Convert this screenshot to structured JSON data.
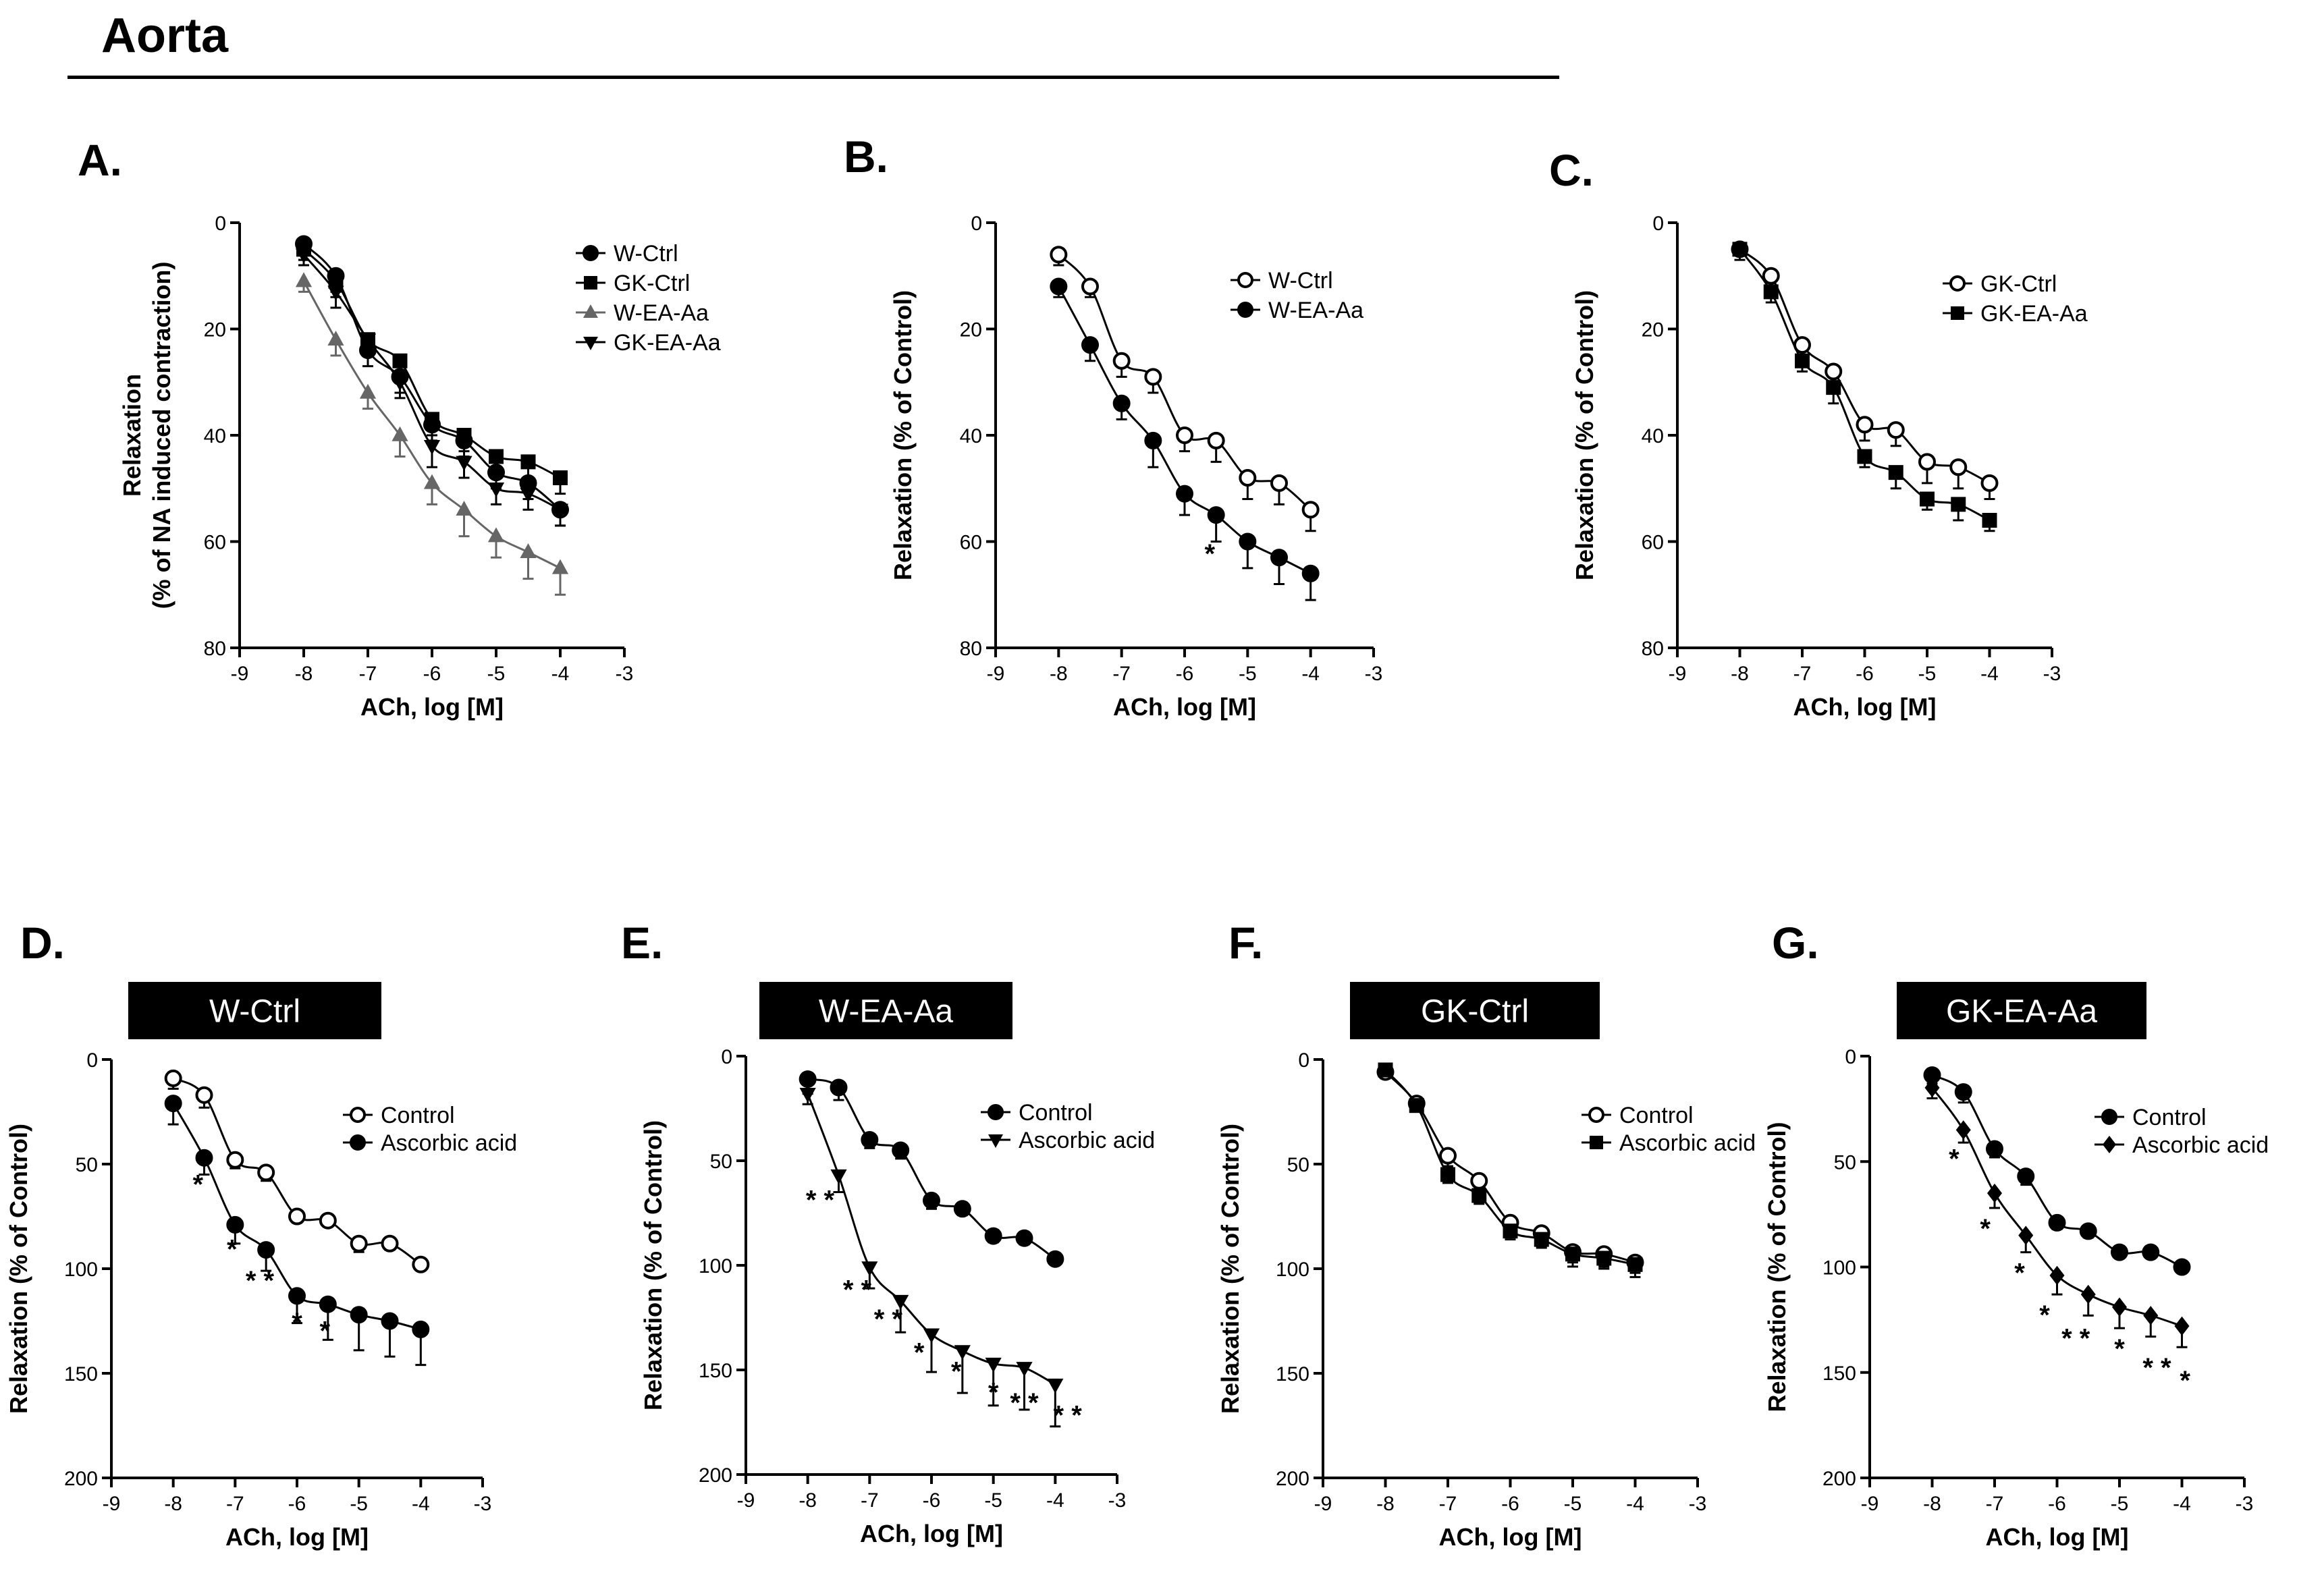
{
  "page": {
    "title": "Aorta"
  },
  "chart_data": [
    {
      "id": "A",
      "panel_label": "A.",
      "type": "line",
      "ylabel_lines": [
        "Relaxation",
        "(% of NA induced contraction)"
      ],
      "xlabel": "ACh, log [M]",
      "xlim": [
        -9,
        -3
      ],
      "ylim": [
        0,
        80
      ],
      "y_inverted": true,
      "xticks": [
        -9,
        -8,
        -7,
        -6,
        -5,
        -4,
        -3
      ],
      "yticks": [
        0,
        20,
        40,
        60,
        80
      ],
      "x": [
        -8,
        -7.5,
        -7,
        -6.5,
        -6,
        -5.5,
        -5,
        -4.5,
        -4
      ],
      "series": [
        {
          "name": "W-Ctrl",
          "marker": "circle",
          "values": [
            4,
            10,
            24,
            29,
            38,
            41,
            47,
            49,
            54
          ],
          "err": [
            3,
            3,
            3,
            3,
            3,
            3,
            3,
            3,
            3
          ]
        },
        {
          "name": "GK-Ctrl",
          "marker": "square",
          "values": [
            5,
            11,
            22,
            26,
            37,
            40,
            44,
            45,
            48
          ],
          "err": [
            2,
            3,
            3,
            3,
            3,
            3,
            3,
            3,
            3
          ]
        },
        {
          "name": "W-EA-Aa",
          "marker": "triangle-up",
          "color": "#666666",
          "values": [
            11,
            22,
            32,
            40,
            49,
            54,
            59,
            62,
            65
          ],
          "err": [
            2,
            3,
            3,
            4,
            4,
            5,
            4,
            5,
            5
          ]
        },
        {
          "name": "GK-EA-Aa",
          "marker": "triangle-down",
          "values": [
            6,
            13,
            22,
            30,
            42,
            45,
            50,
            51,
            54
          ],
          "err": [
            2,
            3,
            3,
            3,
            4,
            3,
            3,
            3,
            3
          ]
        }
      ],
      "annotations": []
    },
    {
      "id": "B",
      "panel_label": "B.",
      "type": "line",
      "ylabel_lines": [
        "Relaxation (% of Control)"
      ],
      "xlabel": "ACh, log [M]",
      "xlim": [
        -9,
        -3
      ],
      "ylim": [
        0,
        80
      ],
      "y_inverted": true,
      "xticks": [
        -9,
        -8,
        -7,
        -6,
        -5,
        -4,
        -3
      ],
      "yticks": [
        0,
        20,
        40,
        60,
        80
      ],
      "x": [
        -8,
        -7.5,
        -7,
        -6.5,
        -6,
        -5.5,
        -5,
        -4.5,
        -4
      ],
      "series": [
        {
          "name": "W-Ctrl",
          "marker": "circle-open",
          "values": [
            6,
            12,
            26,
            29,
            40,
            41,
            48,
            49,
            54
          ],
          "err": [
            2,
            2,
            3,
            3,
            3,
            4,
            4,
            4,
            4
          ]
        },
        {
          "name": "W-EA-Aa",
          "marker": "circle",
          "values": [
            12,
            23,
            34,
            41,
            51,
            55,
            60,
            63,
            66
          ],
          "err": [
            2,
            3,
            3,
            5,
            4,
            5,
            5,
            5,
            5
          ]
        }
      ],
      "annotations": [
        {
          "text": "*",
          "x": -5.6,
          "y": 64
        }
      ]
    },
    {
      "id": "C",
      "panel_label": "C.",
      "type": "line",
      "ylabel_lines": [
        "Relaxation (% of Control)"
      ],
      "xlabel": "ACh, log [M]",
      "xlim": [
        -9,
        -3
      ],
      "ylim": [
        0,
        80
      ],
      "y_inverted": true,
      "xticks": [
        -9,
        -8,
        -7,
        -6,
        -5,
        -4,
        -3
      ],
      "yticks": [
        0,
        20,
        40,
        60,
        80
      ],
      "x": [
        -8,
        -7.5,
        -7,
        -6.5,
        -6,
        -5.5,
        -5,
        -4.5,
        -4
      ],
      "series": [
        {
          "name": "GK-Ctrl",
          "marker": "circle-open",
          "values": [
            5,
            10,
            23,
            28,
            38,
            39,
            45,
            46,
            49
          ],
          "err": [
            2,
            2,
            3,
            4,
            3,
            3,
            4,
            4,
            3
          ]
        },
        {
          "name": "GK-EA-Aa",
          "marker": "square",
          "values": [
            5,
            13,
            26,
            31,
            44,
            47,
            52,
            53,
            56
          ],
          "err": [
            1,
            2,
            2,
            3,
            2,
            3,
            2,
            3,
            2
          ]
        }
      ],
      "annotations": []
    },
    {
      "id": "D",
      "panel_label": "D.",
      "box_title": "W-Ctrl",
      "type": "line",
      "ylabel_lines": [
        "Relaxation (% of Control)"
      ],
      "xlabel": "ACh, log [M]",
      "xlim": [
        -9,
        -3
      ],
      "ylim": [
        0,
        200
      ],
      "y_inverted": true,
      "xticks": [
        -9,
        -8,
        -7,
        -6,
        -5,
        -4,
        -3
      ],
      "yticks": [
        0,
        50,
        100,
        150,
        200
      ],
      "x": [
        -8,
        -7.5,
        -7,
        -6.5,
        -6,
        -5.5,
        -5,
        -4.5,
        -4
      ],
      "series": [
        {
          "name": "Control",
          "marker": "circle-open",
          "values": [
            9,
            17,
            48,
            54,
            75,
            77,
            88,
            88,
            98
          ],
          "err": [
            5,
            6,
            4,
            4,
            3,
            2,
            4,
            3,
            2
          ]
        },
        {
          "name": "Ascorbic acid",
          "marker": "circle",
          "values": [
            21,
            47,
            79,
            91,
            113,
            117,
            122,
            125,
            129
          ],
          "err": [
            10,
            8,
            9,
            10,
            13,
            17,
            17,
            17,
            17
          ]
        }
      ],
      "annotations": [
        {
          "text": "*",
          "x": -7.6,
          "y": 64
        },
        {
          "text": "*",
          "x": -7.05,
          "y": 95
        },
        {
          "text": "* *",
          "x": -6.6,
          "y": 110
        },
        {
          "text": "*",
          "x": -6.0,
          "y": 130
        },
        {
          "text": "*",
          "x": -5.55,
          "y": 134
        }
      ]
    },
    {
      "id": "E",
      "panel_label": "E.",
      "box_title": "W-EA-Aa",
      "type": "line",
      "ylabel_lines": [
        "Relaxation (% of Control)"
      ],
      "xlabel": "ACh, log [M]",
      "xlim": [
        -9,
        -3
      ],
      "ylim": [
        0,
        200
      ],
      "y_inverted": true,
      "xticks": [
        -9,
        -8,
        -7,
        -6,
        -5,
        -4,
        -3
      ],
      "yticks": [
        0,
        50,
        100,
        150,
        200
      ],
      "x": [
        -8,
        -7.5,
        -7,
        -6.5,
        -6,
        -5.5,
        -5,
        -4.5,
        -4
      ],
      "series": [
        {
          "name": "Control",
          "marker": "circle",
          "values": [
            11,
            15,
            40,
            45,
            69,
            73,
            86,
            87,
            97
          ],
          "err": [
            7,
            6,
            4,
            4,
            4,
            3,
            3,
            3,
            2
          ]
        },
        {
          "name": "Ascorbic acid",
          "marker": "triangle-down",
          "values": [
            18,
            57,
            101,
            117,
            133,
            141,
            147,
            149,
            157
          ],
          "err": [
            5,
            8,
            10,
            15,
            18,
            20,
            20,
            20,
            20
          ]
        }
      ],
      "annotations": [
        {
          "text": "* *",
          "x": -7.8,
          "y": 73
        },
        {
          "text": "* *",
          "x": -7.2,
          "y": 116
        },
        {
          "text": "* *",
          "x": -6.7,
          "y": 130
        },
        {
          "text": "*",
          "x": -6.2,
          "y": 146
        },
        {
          "text": "*",
          "x": -5.6,
          "y": 155
        },
        {
          "text": "*",
          "x": -5.0,
          "y": 165
        },
        {
          "text": "* *",
          "x": -4.5,
          "y": 170
        },
        {
          "text": "* *",
          "x": -3.8,
          "y": 176
        }
      ]
    },
    {
      "id": "F",
      "panel_label": "F.",
      "box_title": "GK-Ctrl",
      "type": "line",
      "ylabel_lines": [
        "Relaxation (% of Control)"
      ],
      "xlabel": "ACh, log [M]",
      "xlim": [
        -9,
        -3
      ],
      "ylim": [
        0,
        200
      ],
      "y_inverted": true,
      "xticks": [
        -9,
        -8,
        -7,
        -6,
        -5,
        -4,
        -3
      ],
      "yticks": [
        0,
        50,
        100,
        150,
        200
      ],
      "x": [
        -8,
        -7.5,
        -7,
        -6.5,
        -6,
        -5.5,
        -5,
        -4.5,
        -4
      ],
      "series": [
        {
          "name": "Control",
          "marker": "circle-open",
          "values": [
            6,
            21,
            46,
            58,
            78,
            83,
            92,
            93,
            97
          ],
          "err": [
            3,
            4,
            5,
            5,
            5,
            6,
            7,
            7,
            7
          ]
        },
        {
          "name": "Ascorbic acid",
          "marker": "square",
          "values": [
            5,
            22,
            55,
            65,
            82,
            86,
            93,
            95,
            98
          ],
          "err": [
            2,
            3,
            4,
            4,
            4,
            4,
            4,
            4,
            4
          ]
        }
      ],
      "annotations": []
    },
    {
      "id": "G",
      "panel_label": "G.",
      "box_title": "GK-EA-Aa",
      "type": "line",
      "ylabel_lines": [
        "Relaxation (% of Control)"
      ],
      "xlabel": "ACh, log [M]",
      "xlim": [
        -9,
        -3
      ],
      "ylim": [
        0,
        200
      ],
      "y_inverted": true,
      "xticks": [
        -9,
        -8,
        -7,
        -6,
        -5,
        -4,
        -3
      ],
      "yticks": [
        0,
        50,
        100,
        150,
        200
      ],
      "x": [
        -8,
        -7.5,
        -7,
        -6.5,
        -6,
        -5.5,
        -5,
        -4.5,
        -4
      ],
      "series": [
        {
          "name": "Control",
          "marker": "circle",
          "values": [
            9,
            17,
            44,
            57,
            79,
            83,
            93,
            93,
            100
          ],
          "err": [
            4,
            5,
            4,
            4,
            3,
            3,
            2,
            2,
            2
          ]
        },
        {
          "name": "Ascorbic acid",
          "marker": "diamond",
          "values": [
            15,
            35,
            65,
            85,
            104,
            113,
            119,
            123,
            128
          ],
          "err": [
            5,
            6,
            7,
            8,
            9,
            10,
            10,
            10,
            10
          ]
        }
      ],
      "annotations": [
        {
          "text": "*",
          "x": -7.65,
          "y": 53
        },
        {
          "text": "*",
          "x": -7.15,
          "y": 86
        },
        {
          "text": "*",
          "x": -6.6,
          "y": 107
        },
        {
          "text": "*",
          "x": -6.2,
          "y": 127
        },
        {
          "text": "* *",
          "x": -5.7,
          "y": 138
        },
        {
          "text": "*",
          "x": -5.0,
          "y": 143
        },
        {
          "text": "* *",
          "x": -4.4,
          "y": 152
        },
        {
          "text": "*",
          "x": -3.95,
          "y": 158
        }
      ]
    }
  ]
}
